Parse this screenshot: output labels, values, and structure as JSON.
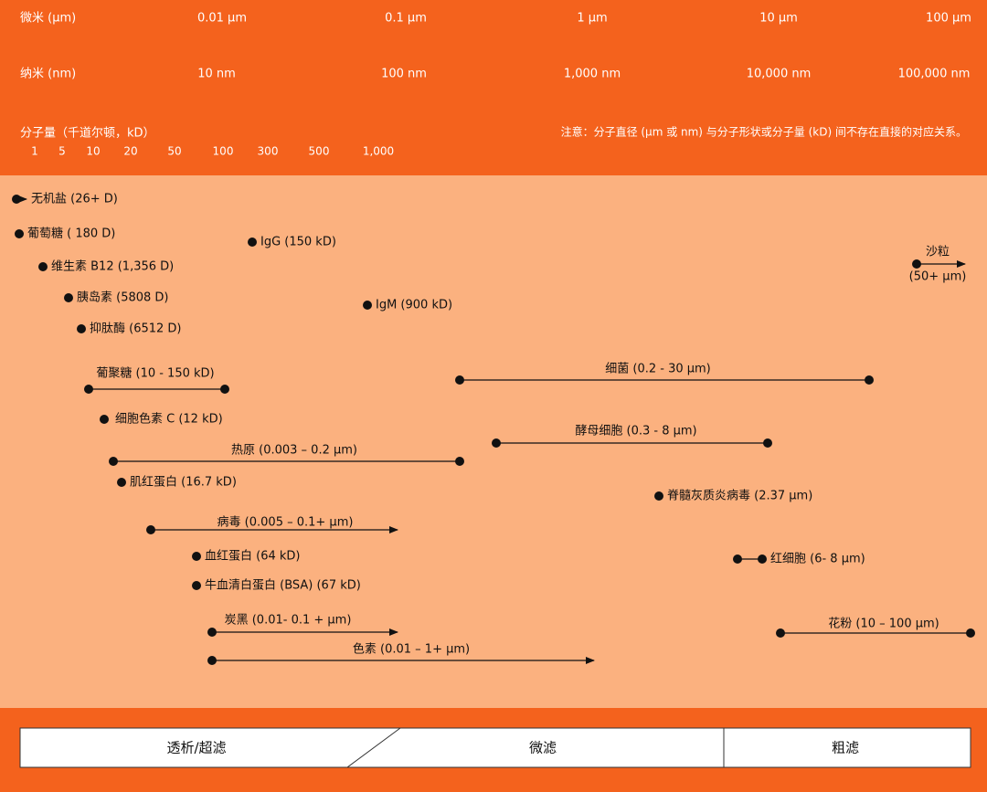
{
  "scales": {
    "micrometer": {
      "label": "微米 (µm)",
      "ticks": [
        "0.01 µm",
        "0.1 µm",
        "1 µm",
        "10 µm",
        "100 µm"
      ]
    },
    "nanometer": {
      "label": "纳米 (nm)",
      "ticks": [
        "10 nm",
        "100 nm",
        "1,000 nm",
        "10,000 nm",
        "100,000 nm"
      ]
    },
    "molecular_weight": {
      "label": "分子量（千道尔顿，kD）",
      "ticks": [
        "1",
        "5",
        "10",
        "20",
        "50",
        "100",
        "300",
        "500",
        "1,000"
      ]
    },
    "note": "注意：分子直径 (µm 或 nm) 与分子形状或分子量 (kD) 间不存在直接的对应关系。"
  },
  "items": [
    {
      "label": "无机盐 (26+ D)"
    },
    {
      "label": "葡萄糖 ( 180 D)"
    },
    {
      "label": "IgG (150 kD)"
    },
    {
      "label": "维生素 B12 (1,356 D)"
    },
    {
      "label": "胰岛素 (5808 D)"
    },
    {
      "label": "IgM (900 kD)"
    },
    {
      "label": "抑肽酶 (6512 D)"
    },
    {
      "label": "沙粒",
      "sublabel": "(50+ µm)"
    },
    {
      "label": "葡聚糖 (10 - 150 kD)"
    },
    {
      "label": "细菌 (0.2 - 30 µm)"
    },
    {
      "label": "细胞色素 C (12 kD)"
    },
    {
      "label": "酵母细胞 (0.3 - 8 µm)"
    },
    {
      "label": "热原 (0.003 – 0.2 µm)"
    },
    {
      "label": "肌红蛋白 (16.7 kD)"
    },
    {
      "label": "脊髓灰质炎病毒 (2.37 µm)"
    },
    {
      "label": "病毒 (0.005 – 0.1+ µm)"
    },
    {
      "label": "血红蛋白 (64 kD)"
    },
    {
      "label": "红细胞 (6- 8 µm)"
    },
    {
      "label": "牛血清白蛋白 (BSA) (67 kD)"
    },
    {
      "label": "炭黑 (0.01- 0.1 + µm)"
    },
    {
      "label": "花粉 (10 – 100 µm)"
    },
    {
      "label": "色素 (0.01 – 1+ µm)"
    }
  ],
  "filtration": [
    "透析/超滤",
    "微滤",
    "粗滤"
  ]
}
